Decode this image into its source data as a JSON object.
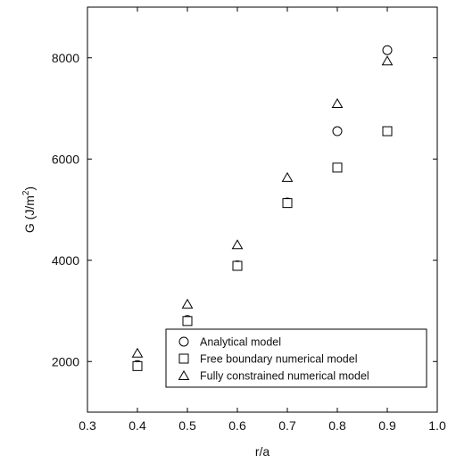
{
  "chart_data": {
    "type": "scatter",
    "xlabel": "r/a",
    "ylabel_main": "G (J/m",
    "ylabel_sup": "2",
    "ylabel_close": ")",
    "xlim": [
      0.3,
      1.0
    ],
    "ylim": [
      1000,
      9000
    ],
    "xticks": [
      0.3,
      0.4,
      0.5,
      0.6,
      0.7,
      0.8,
      0.9,
      1.0
    ],
    "xtick_labels": [
      "0.3",
      "0.4",
      "0.5",
      "0.6",
      "0.7",
      "0.8",
      "0.9",
      "1.0"
    ],
    "yticks": [
      2000,
      4000,
      6000,
      8000
    ],
    "ytick_labels": [
      "2000",
      "4000",
      "6000",
      "8000"
    ],
    "grid": false,
    "legend_position": "lower-right",
    "series": [
      {
        "name": "Analytical model",
        "marker": "circle",
        "x": [
          0.4,
          0.5,
          0.6,
          0.7,
          0.8,
          0.9
        ],
        "y": [
          1930,
          2820,
          3900,
          5140,
          6550,
          8150
        ]
      },
      {
        "name": "Free boundary numerical model",
        "marker": "square",
        "x": [
          0.4,
          0.5,
          0.6,
          0.7,
          0.8,
          0.9
        ],
        "y": [
          1910,
          2800,
          3890,
          5130,
          5830,
          6550
        ]
      },
      {
        "name": "Fully constrained numerical model",
        "marker": "triangle",
        "x": [
          0.4,
          0.5,
          0.6,
          0.7,
          0.8,
          0.9
        ],
        "y": [
          2150,
          3120,
          4290,
          5620,
          7080,
          7920
        ]
      }
    ]
  }
}
